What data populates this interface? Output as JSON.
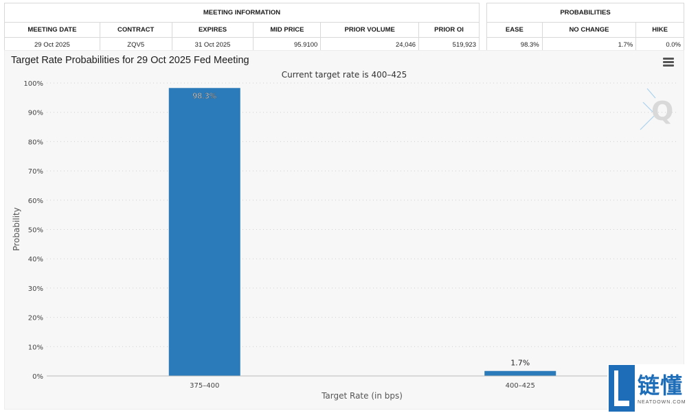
{
  "meeting_info": {
    "group_header": "MEETING INFORMATION",
    "headers": [
      "MEETING DATE",
      "CONTRACT",
      "EXPIRES",
      "MID PRICE",
      "PRIOR VOLUME",
      "PRIOR OI"
    ],
    "row": [
      "29 Oct 2025",
      "ZQV5",
      "31 Oct 2025",
      "95.9100",
      "24,046",
      "519,923"
    ]
  },
  "probabilities": {
    "group_header": "PROBABILITIES",
    "headers": [
      "EASE",
      "NO CHANGE",
      "HIKE"
    ],
    "row": [
      "98.3%",
      "1.7%",
      "0.0%"
    ]
  },
  "chart_title": "Target Rate Probabilities for 29 Oct 2025 Fed Meeting",
  "watermark": {
    "text_cn": "链懂",
    "text_en": "NEATDOWN.COM"
  },
  "colors": {
    "bar": "#2b7bba",
    "grid": "#cfcfcf",
    "panel": "#f7f7f7"
  },
  "chart_data": {
    "type": "bar",
    "title": "Target Rate Probabilities for 29 Oct 2025 Fed Meeting",
    "subtitle": "Current target rate is 400–425",
    "xlabel": "Target Rate (in bps)",
    "ylabel": "Probability",
    "categories": [
      "375–400",
      "400–425"
    ],
    "values": [
      98.3,
      1.7
    ],
    "data_labels": [
      "98.3%",
      "1.7%"
    ],
    "ylim": [
      0,
      100
    ],
    "yticks": [
      "0%",
      "10%",
      "20%",
      "30%",
      "40%",
      "50%",
      "60%",
      "70%",
      "80%",
      "90%",
      "100%"
    ],
    "grid": true
  }
}
